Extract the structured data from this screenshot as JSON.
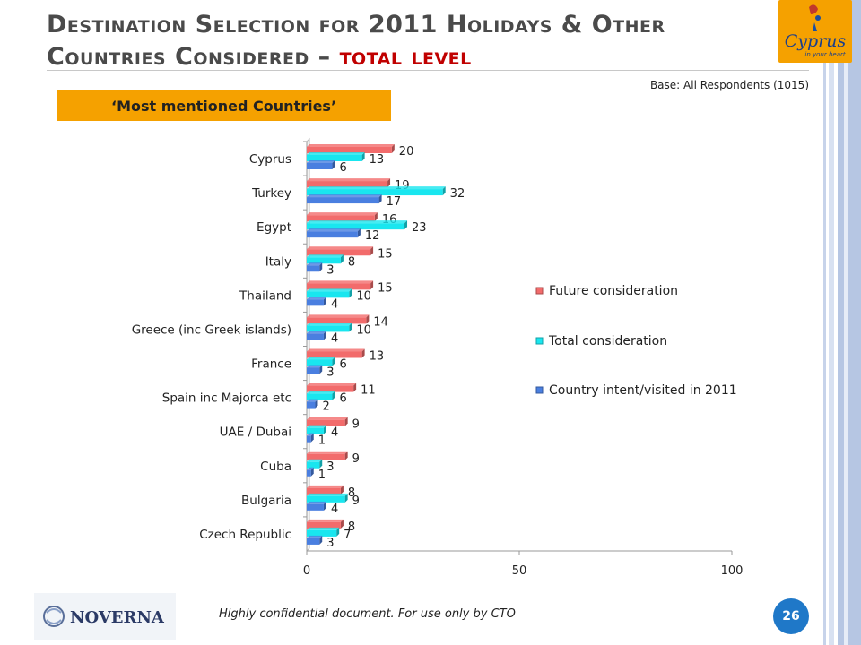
{
  "header": {
    "title_part1": "Destination Selection for 2011 Holidays & Other Countries Considered – ",
    "title_part2": "total level",
    "base_text": "Base: All Respondents (1015)",
    "subtitle": "‘Most mentioned Countries’"
  },
  "logo": {
    "text": "Cyprus",
    "tagline": "in your heart",
    "name": "cyprus-logo"
  },
  "footer": {
    "company": "NOVERNA",
    "confidential": "Highly confidential document. For use only by CTO",
    "page_number": "26"
  },
  "chart_data": {
    "type": "bar",
    "orientation": "horizontal",
    "categories": [
      "Cyprus",
      "Turkey",
      "Egypt",
      "Italy",
      "Thailand",
      "Greece (inc Greek islands)",
      "France",
      "Spain inc Majorca etc",
      "UAE / Dubai",
      "Cuba",
      "Bulgaria",
      "Czech Republic"
    ],
    "series": [
      {
        "name": "Future consideration",
        "color": "#f26b6b",
        "values": [
          20,
          19,
          16,
          15,
          15,
          14,
          13,
          11,
          9,
          9,
          8,
          8
        ]
      },
      {
        "name": "Total consideration",
        "color": "#19e6ef",
        "values": [
          13,
          32,
          23,
          8,
          10,
          10,
          6,
          6,
          4,
          3,
          9,
          7
        ]
      },
      {
        "name": "Country intent/visited in 2011",
        "color": "#4a7fe0",
        "values": [
          6,
          17,
          12,
          3,
          4,
          4,
          3,
          2,
          1,
          1,
          4,
          3
        ]
      }
    ],
    "xlim": [
      0,
      100
    ],
    "xticks": [
      0,
      50,
      100
    ],
    "legend_position": "right",
    "grid": false
  }
}
